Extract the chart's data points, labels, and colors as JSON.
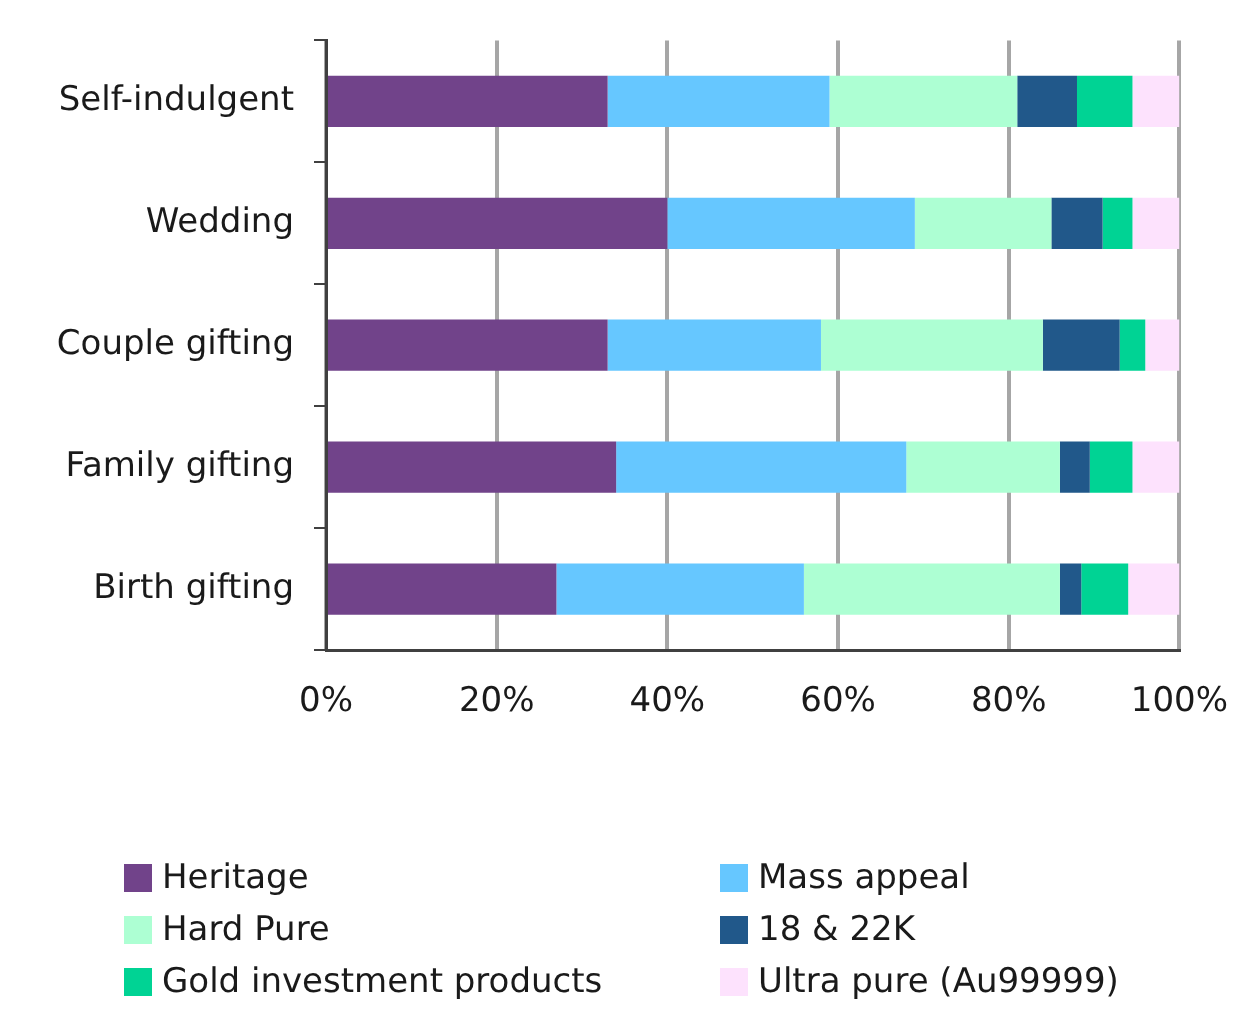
{
  "chart_data": {
    "type": "bar",
    "orientation": "horizontal",
    "stacked": true,
    "categories": [
      "Self-indulgent",
      "Wedding",
      "Couple gifting",
      "Family gifting",
      "Birth gifting"
    ],
    "series": [
      {
        "name": "Heritage",
        "color": "#71438a",
        "values": [
          33,
          40,
          33,
          34,
          27
        ]
      },
      {
        "name": "Mass appeal",
        "color": "#66c7ff",
        "values": [
          26,
          29,
          25,
          34,
          29
        ]
      },
      {
        "name": "Hard Pure",
        "color": "#adffd3",
        "values": [
          22,
          16,
          26,
          18,
          30
        ]
      },
      {
        "name": "18 & 22K",
        "color": "#21588a",
        "values": [
          7,
          6,
          9,
          3.5,
          2.5
        ]
      },
      {
        "name": "Gold investment products",
        "color": "#00d394",
        "values": [
          6.5,
          3.5,
          3,
          5,
          5.5
        ]
      },
      {
        "name": "Ultra pure (Au99999)",
        "color": "#fde2fd",
        "values": [
          5.5,
          5.5,
          4,
          5.5,
          6
        ]
      }
    ],
    "xlim": [
      0,
      100
    ],
    "xticks": [
      {
        "value": 0,
        "label": "0%"
      },
      {
        "value": 20,
        "label": "20%"
      },
      {
        "value": 40,
        "label": "40%"
      },
      {
        "value": 60,
        "label": "60%"
      },
      {
        "value": 80,
        "label": "80%"
      },
      {
        "value": 100,
        "label": "100%"
      }
    ],
    "grid": "x",
    "legend": "bottom"
  }
}
